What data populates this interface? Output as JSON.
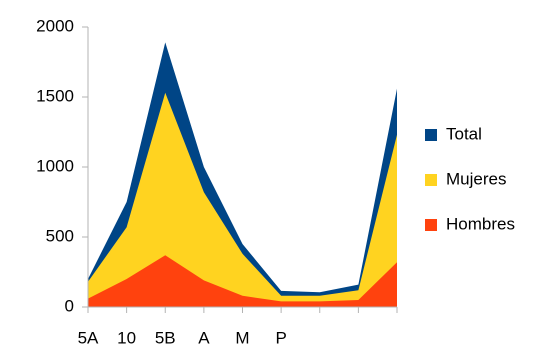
{
  "chart_data": {
    "type": "area",
    "categories": [
      "5A",
      "10",
      "5B",
      "A",
      "M",
      "P",
      null,
      null,
      null
    ],
    "series": [
      {
        "name": "Total",
        "color": "#004586",
        "values": [
          200,
          750,
          1890,
          1000,
          450,
          115,
          105,
          160,
          1560
        ]
      },
      {
        "name": "Mujeres",
        "color": "#ffd320",
        "values": [
          180,
          570,
          1530,
          820,
          380,
          80,
          80,
          120,
          1230
        ]
      },
      {
        "name": "Hombres",
        "color": "#ff420e",
        "values": [
          60,
          200,
          370,
          190,
          80,
          40,
          40,
          50,
          320
        ]
      }
    ],
    "ylim": [
      0,
      2000
    ],
    "yticks": [
      0,
      500,
      1000,
      1500,
      2000
    ],
    "legend": "right"
  }
}
